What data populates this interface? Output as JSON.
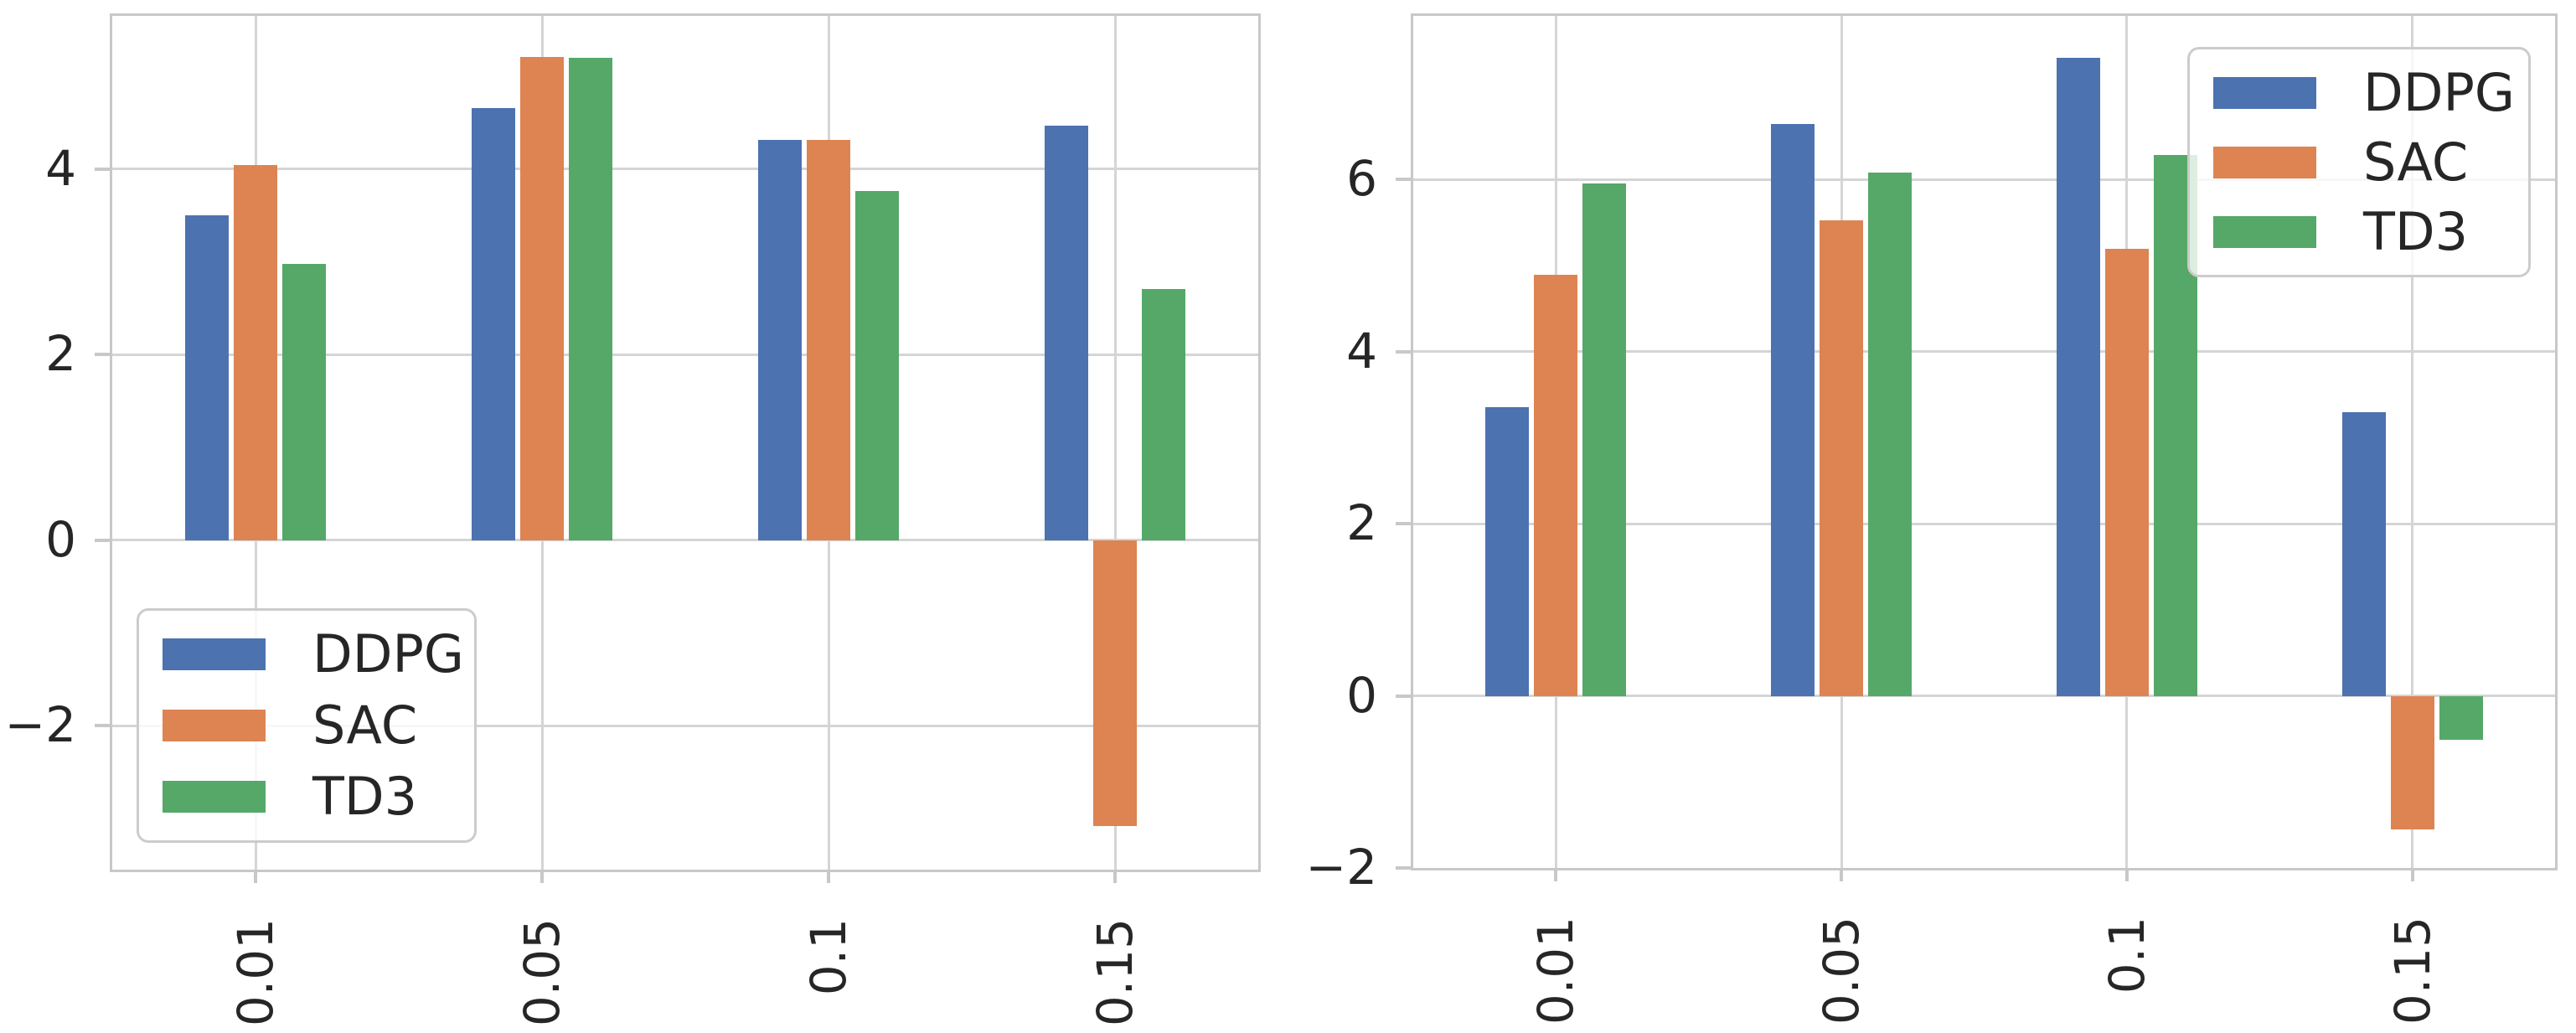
{
  "figure": {
    "background": "#ffffff",
    "grid_color": "#d5d5d5",
    "spine_color": "#c8c8c8",
    "text_color": "#262626"
  },
  "chart_data": [
    {
      "type": "bar",
      "title": "",
      "xlabel": "",
      "ylabel": "",
      "categories": [
        "0.01",
        "0.05",
        "0.1",
        "0.15"
      ],
      "series": [
        {
          "name": "DDPG",
          "color": "#4C72B0",
          "values": [
            3.5,
            4.66,
            4.31,
            4.47
          ]
        },
        {
          "name": "SAC",
          "color": "#DD8452",
          "values": [
            4.04,
            5.21,
            4.31,
            -3.08
          ]
        },
        {
          "name": "TD3",
          "color": "#55A868",
          "values": [
            2.98,
            5.2,
            3.76,
            2.71
          ]
        }
      ],
      "yticks": [
        4,
        2,
        0,
        -2
      ],
      "ylim": [
        -3.55,
        5.65
      ],
      "grid": true,
      "legend_position": "lower left"
    },
    {
      "type": "bar",
      "title": "",
      "xlabel": "",
      "ylabel": "",
      "categories": [
        "0.01",
        "0.05",
        "0.1",
        "0.15"
      ],
      "series": [
        {
          "name": "DDPG",
          "color": "#4C72B0",
          "values": [
            3.35,
            6.64,
            7.41,
            3.3
          ]
        },
        {
          "name": "SAC",
          "color": "#DD8452",
          "values": [
            4.89,
            5.52,
            5.19,
            -1.55
          ]
        },
        {
          "name": "TD3",
          "color": "#55A868",
          "values": [
            5.95,
            6.08,
            6.28,
            -0.51
          ]
        }
      ],
      "yticks": [
        6,
        4,
        2,
        0,
        -2
      ],
      "ylim": [
        -2.0,
        7.9
      ],
      "grid": true,
      "legend_position": "upper right"
    }
  ]
}
